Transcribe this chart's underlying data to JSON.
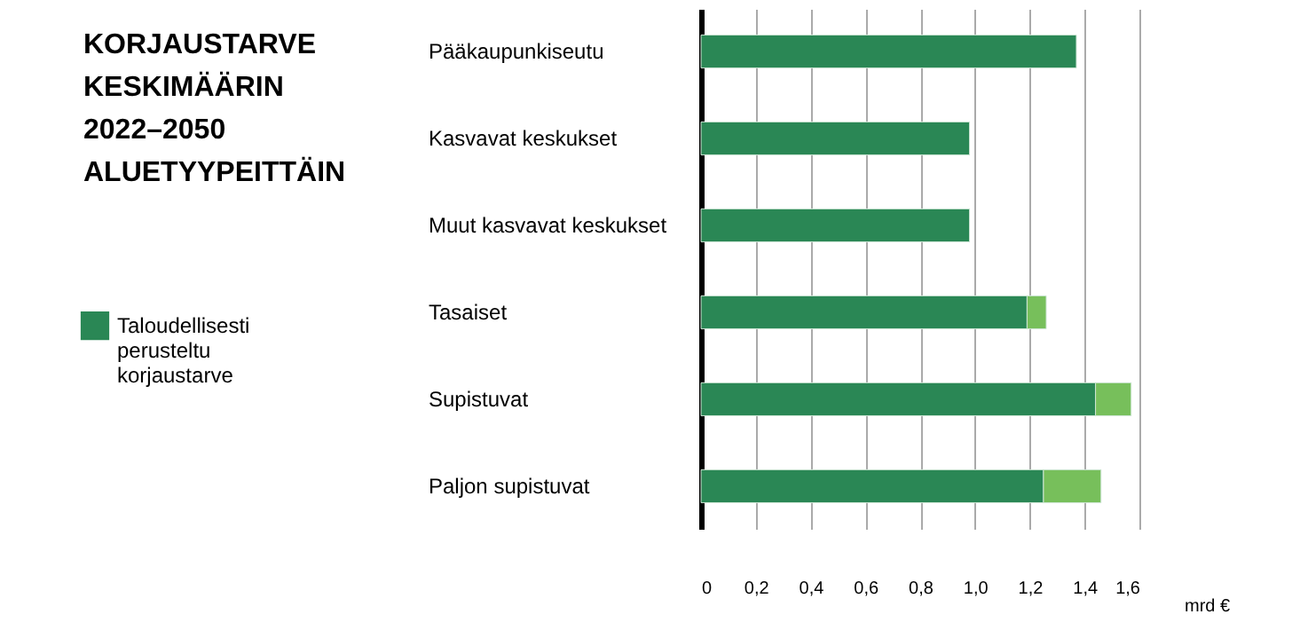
{
  "chart_data": {
    "type": "bar",
    "orientation": "horizontal",
    "stacked": true,
    "title": "KORJAUSTARVE KESKIMÄÄRIN 2022–2050 ALUETYYPEITTÄIN",
    "xlabel": "mrd €",
    "categories": [
      "Pääkaupunkiseutu",
      "Kasvavat keskukset",
      "Muut kasvavat keskukset",
      "Tasaiset",
      "Supistuvat",
      "Paljon supistuvat"
    ],
    "series": [
      {
        "name": "Taloudellisesti perusteltu korjaustarve",
        "color": "#2a8755",
        "values": [
          1.37,
          0.98,
          0.98,
          1.19,
          1.44,
          1.25
        ]
      },
      {
        "color": "#77bf5b",
        "values": [
          null,
          null,
          null,
          0.07,
          0.13,
          0.21
        ]
      }
    ],
    "xlim": [
      0,
      1.6
    ],
    "xticks": [
      0,
      {
        "value": 0.2,
        "label": "0,2"
      },
      {
        "value": 0.4,
        "label": "0,4"
      },
      {
        "value": 0.6,
        "label": "0,6"
      },
      {
        "value": 0.8,
        "label": "0,8"
      },
      {
        "value": 1.0,
        "label": "1,0"
      },
      {
        "value": 1.2,
        "label": "1,2"
      },
      {
        "value": 1.4,
        "label": "1,4"
      },
      {
        "value": 1.6,
        "label": "1,6"
      }
    ],
    "grid": "x",
    "legend": "left"
  }
}
